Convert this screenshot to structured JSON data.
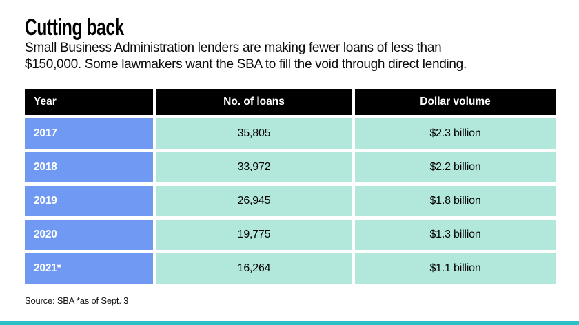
{
  "header": {
    "title": "Cutting back",
    "subtitle_lines": [
      "Small Business Administration lenders are making fewer loans of less than",
      "$150,000. Some lawmakers want the SBA to fill the void through direct lending."
    ]
  },
  "table": {
    "columns": [
      "Year",
      "No. of loans",
      "Dollar volume"
    ],
    "rows": [
      {
        "year": "2017",
        "loans": "35,805",
        "volume": "$2.3 billion"
      },
      {
        "year": "2018",
        "loans": "33,972",
        "volume": "$2.2 billion"
      },
      {
        "year": "2019",
        "loans": "26,945",
        "volume": "$1.8 billion"
      },
      {
        "year": "2020",
        "loans": "19,775",
        "volume": "$1.3 billion"
      },
      {
        "year": "2021*",
        "loans": "16,264",
        "volume": "$1.1 billion"
      }
    ]
  },
  "footer": {
    "source": "Source: SBA *as of Sept. 3"
  },
  "chart_data": {
    "type": "table",
    "title": "Cutting back",
    "subtitle": "Small Business Administration lenders are making fewer loans of less than $150,000. Some lawmakers want the SBA to fill the void through direct lending.",
    "columns": [
      "Year",
      "No. of loans",
      "Dollar volume"
    ],
    "years": [
      "2017",
      "2018",
      "2019",
      "2020",
      "2021*"
    ],
    "no_of_loans": [
      35805,
      33972,
      26945,
      19775,
      16264
    ],
    "dollar_volume_billions": [
      2.3,
      2.2,
      1.8,
      1.3,
      1.1
    ],
    "source": "SBA",
    "footnote": "*as of Sept. 3"
  },
  "colors": {
    "header_bg": "#000000",
    "header_text": "#ffffff",
    "year_cell_bg": "#6f99f2",
    "year_cell_text": "#ffffff",
    "data_cell_bg": "#b2e8db",
    "data_cell_text": "#000000",
    "accent_bar": "#2bc0c7"
  }
}
